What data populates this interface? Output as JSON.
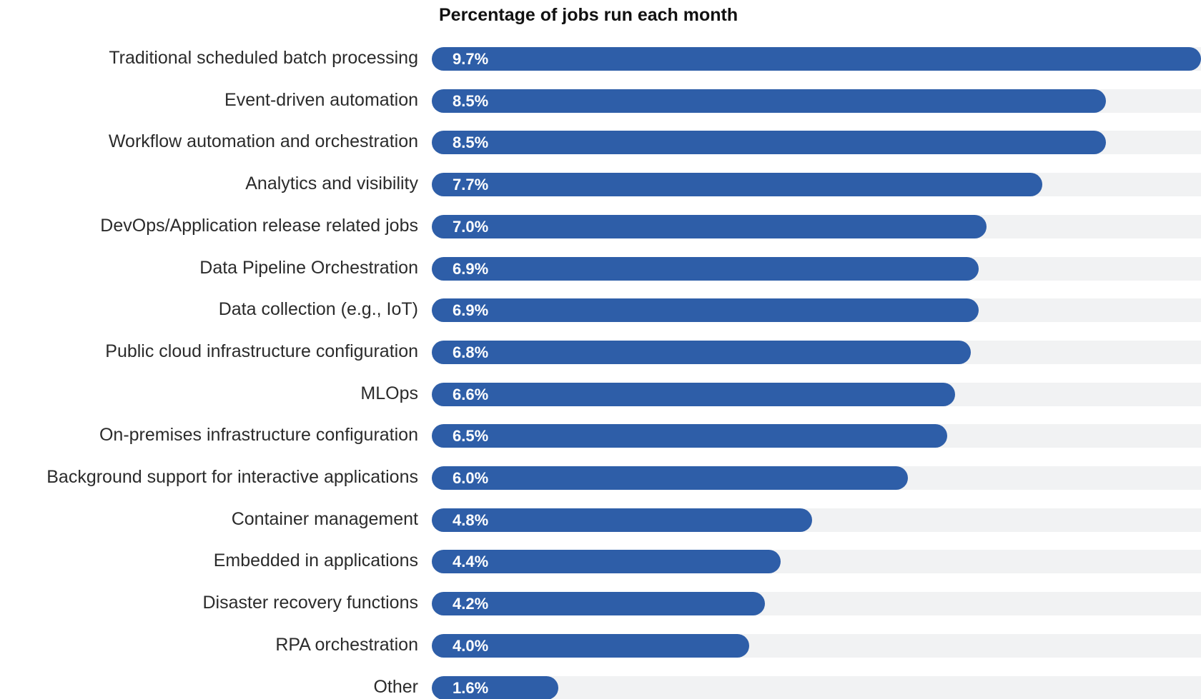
{
  "chart_data": {
    "type": "bar",
    "orientation": "horizontal",
    "title": "Percentage of jobs run each month",
    "xlabel": "",
    "ylabel": "",
    "xlim": [
      0,
      9.7
    ],
    "grid": false,
    "legend": "none",
    "colors": {
      "bar": "#2e5ea8",
      "track": "#f1f2f3",
      "value_label": "#ffffff",
      "category_label": "#2b2b2b",
      "title": "#111111"
    },
    "categories": [
      "Traditional scheduled batch processing",
      "Event-driven automation",
      "Workflow automation and orchestration",
      "Analytics and visibility",
      "DevOps/Application release related jobs",
      "Data Pipeline Orchestration",
      "Data collection (e.g., IoT)",
      "Public cloud infrastructure configuration",
      "MLOps",
      "On-premises infrastructure configuration",
      "Background support for interactive applications",
      "Container management",
      "Embedded in applications",
      "Disaster recovery functions",
      "RPA orchestration",
      "Other"
    ],
    "values": [
      9.7,
      8.5,
      8.5,
      7.7,
      7.0,
      6.9,
      6.9,
      6.8,
      6.6,
      6.5,
      6.0,
      4.8,
      4.4,
      4.2,
      4.0,
      1.6
    ],
    "value_labels": [
      "9.7%",
      "8.5%",
      "8.5%",
      "7.7%",
      "7.0%",
      "6.9%",
      "6.9%",
      "6.8%",
      "6.6%",
      "6.5%",
      "6.0%",
      "4.8%",
      "4.4%",
      "4.2%",
      "4.0%",
      "1.6%"
    ]
  }
}
